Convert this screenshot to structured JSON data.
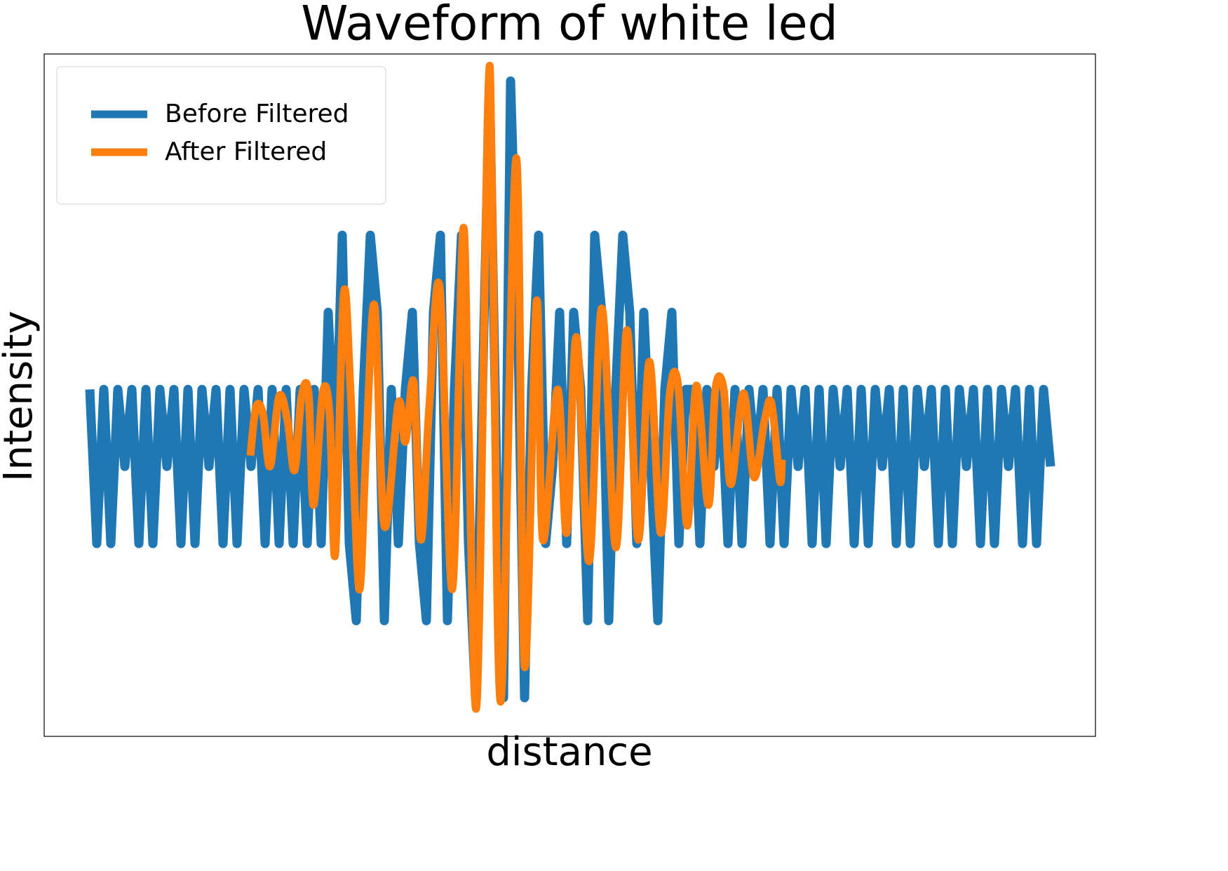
{
  "chart_data": {
    "type": "line",
    "title": "Waveform of white led",
    "x_label": "distance",
    "y_label": "Intensity",
    "xlim": [
      -65,
      1434
    ],
    "ylim": [
      -3.5,
      5.35
    ],
    "legend": "upper left",
    "series": [
      {
        "name": "Before Filtered",
        "color": "#1f77b4",
        "x": [
          0,
          10,
          20,
          30,
          40,
          50,
          60,
          70,
          80,
          90,
          100,
          110,
          120,
          130,
          140,
          150,
          160,
          170,
          180,
          190,
          200,
          210,
          220,
          230,
          240,
          250,
          260,
          270,
          280,
          290,
          300,
          310,
          320,
          330,
          340,
          350,
          360,
          370,
          380,
          390,
          400,
          410,
          420,
          430,
          440,
          450,
          460,
          470,
          480,
          490,
          500,
          510,
          520,
          530,
          540,
          550,
          560,
          570,
          580,
          590,
          600,
          610,
          620,
          630,
          640,
          650,
          660,
          670,
          680,
          690,
          700,
          710,
          720,
          730,
          740,
          750,
          760,
          770,
          780,
          790,
          800,
          810,
          820,
          830,
          840,
          850,
          860,
          870,
          880,
          890,
          900,
          910,
          920,
          930,
          940,
          950,
          960,
          970,
          980,
          990,
          1000,
          1010,
          1020,
          1030,
          1040,
          1050,
          1060,
          1070,
          1080,
          1090,
          1100,
          1110,
          1120,
          1130,
          1140,
          1150,
          1160,
          1170,
          1180,
          1190,
          1200,
          1210,
          1220,
          1230,
          1240,
          1250,
          1260,
          1270,
          1280,
          1290,
          1300,
          1310,
          1320,
          1330,
          1340,
          1350,
          1360,
          1370
        ],
        "values": [
          1,
          -1,
          1,
          -1,
          1,
          0,
          1,
          -1,
          1,
          -1,
          1,
          0,
          1,
          -1,
          1,
          -1,
          1,
          0,
          1,
          -1,
          1,
          -1,
          1,
          0,
          1,
          -1,
          1,
          -1,
          1,
          -1,
          1,
          -1,
          1,
          -1,
          2,
          0,
          3,
          -1,
          -2,
          1,
          3,
          2,
          -2,
          1,
          -1,
          1,
          2,
          -1,
          -2,
          2,
          3,
          -2,
          1,
          3,
          -1,
          -3,
          1,
          5,
          0,
          -3,
          5,
          2,
          -3,
          1,
          3,
          -1,
          0,
          2,
          -1,
          2,
          1,
          -2,
          3,
          2,
          -2,
          1,
          3,
          2,
          -1,
          2,
          0,
          -2,
          1,
          2,
          -1,
          1,
          1,
          -1,
          1,
          0,
          1,
          -1,
          1,
          -1,
          1,
          0,
          1,
          -1,
          1,
          -1,
          1,
          0,
          1,
          -1,
          1,
          -1,
          1,
          0,
          1,
          -1,
          1,
          -1,
          1,
          0,
          1,
          -1,
          1,
          -1,
          1,
          0,
          1,
          -1,
          1,
          -1,
          1,
          0,
          1,
          -1,
          1,
          -1,
          1,
          0,
          1,
          -1,
          1,
          -1,
          1,
          0
        ]
      },
      {
        "name": "After Filtered",
        "color": "#ff7f0e",
        "x": [
          229,
          237,
          247,
          257,
          270,
          282,
          292,
          302,
          312,
          319,
          332,
          342,
          350,
          362,
          372,
          384,
          394,
          406,
          420,
          440,
          450,
          462,
          472,
          484,
          499,
          517,
          532,
          540,
          552,
          568,
          574,
          586,
          608,
          620,
          637,
          646,
          667,
          680,
          694,
          712,
          730,
          750,
          766,
          782,
          798,
          814,
          827,
          839,
          852,
          865,
          882,
          892,
          904,
          914,
          932,
          947,
          962,
          972,
          984,
          987
        ],
        "values": [
          0.14,
          0.77,
          0.68,
          0,
          0.91,
          0.59,
          -0.05,
          0.91,
          0.95,
          -0.5,
          0.95,
          0.68,
          -1.14,
          2.23,
          0.95,
          -1.59,
          0.23,
          2.09,
          -0.77,
          0.82,
          0.32,
          1.09,
          -0.95,
          0.77,
          2.32,
          -1.59,
          3.05,
          0.59,
          -3.05,
          4.77,
          3.41,
          -3.05,
          4,
          -2.59,
          2.14,
          -0.95,
          1,
          -0.86,
          1.68,
          -1.23,
          2.05,
          -1.05,
          1.77,
          -0.95,
          1.36,
          -0.86,
          0.95,
          1.05,
          -0.77,
          1.05,
          -0.5,
          1,
          1,
          -0.23,
          0.95,
          -0.14,
          0.59,
          0.82,
          -0.18,
          0.09
        ]
      }
    ]
  }
}
